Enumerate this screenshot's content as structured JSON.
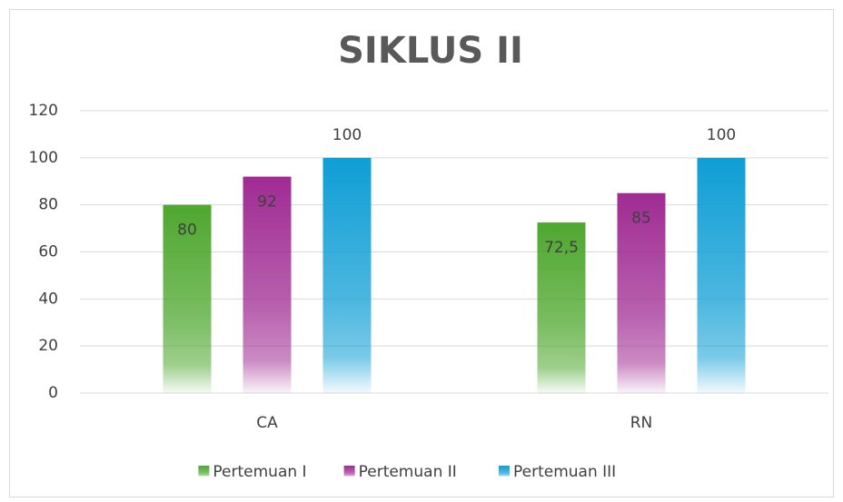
{
  "chart_data": {
    "type": "bar",
    "title": "SIKLUS II",
    "categories": [
      "CA",
      "RN"
    ],
    "series": [
      {
        "name": "Pertemuan I",
        "color": "#4ea72e",
        "values": [
          80,
          72.5
        ],
        "value_labels": [
          "80",
          "72,5"
        ]
      },
      {
        "name": "Pertemuan II",
        "color": "#a02b93",
        "values": [
          92,
          85
        ]
      },
      {
        "name": "Pertemuan III",
        "color": "#0f9ed5",
        "values": [
          100,
          100
        ]
      }
    ],
    "ylim": [
      0,
      120
    ],
    "yticks": [
      0,
      20,
      40,
      60,
      80,
      100,
      120
    ],
    "grid": true,
    "legend": "bottom"
  }
}
